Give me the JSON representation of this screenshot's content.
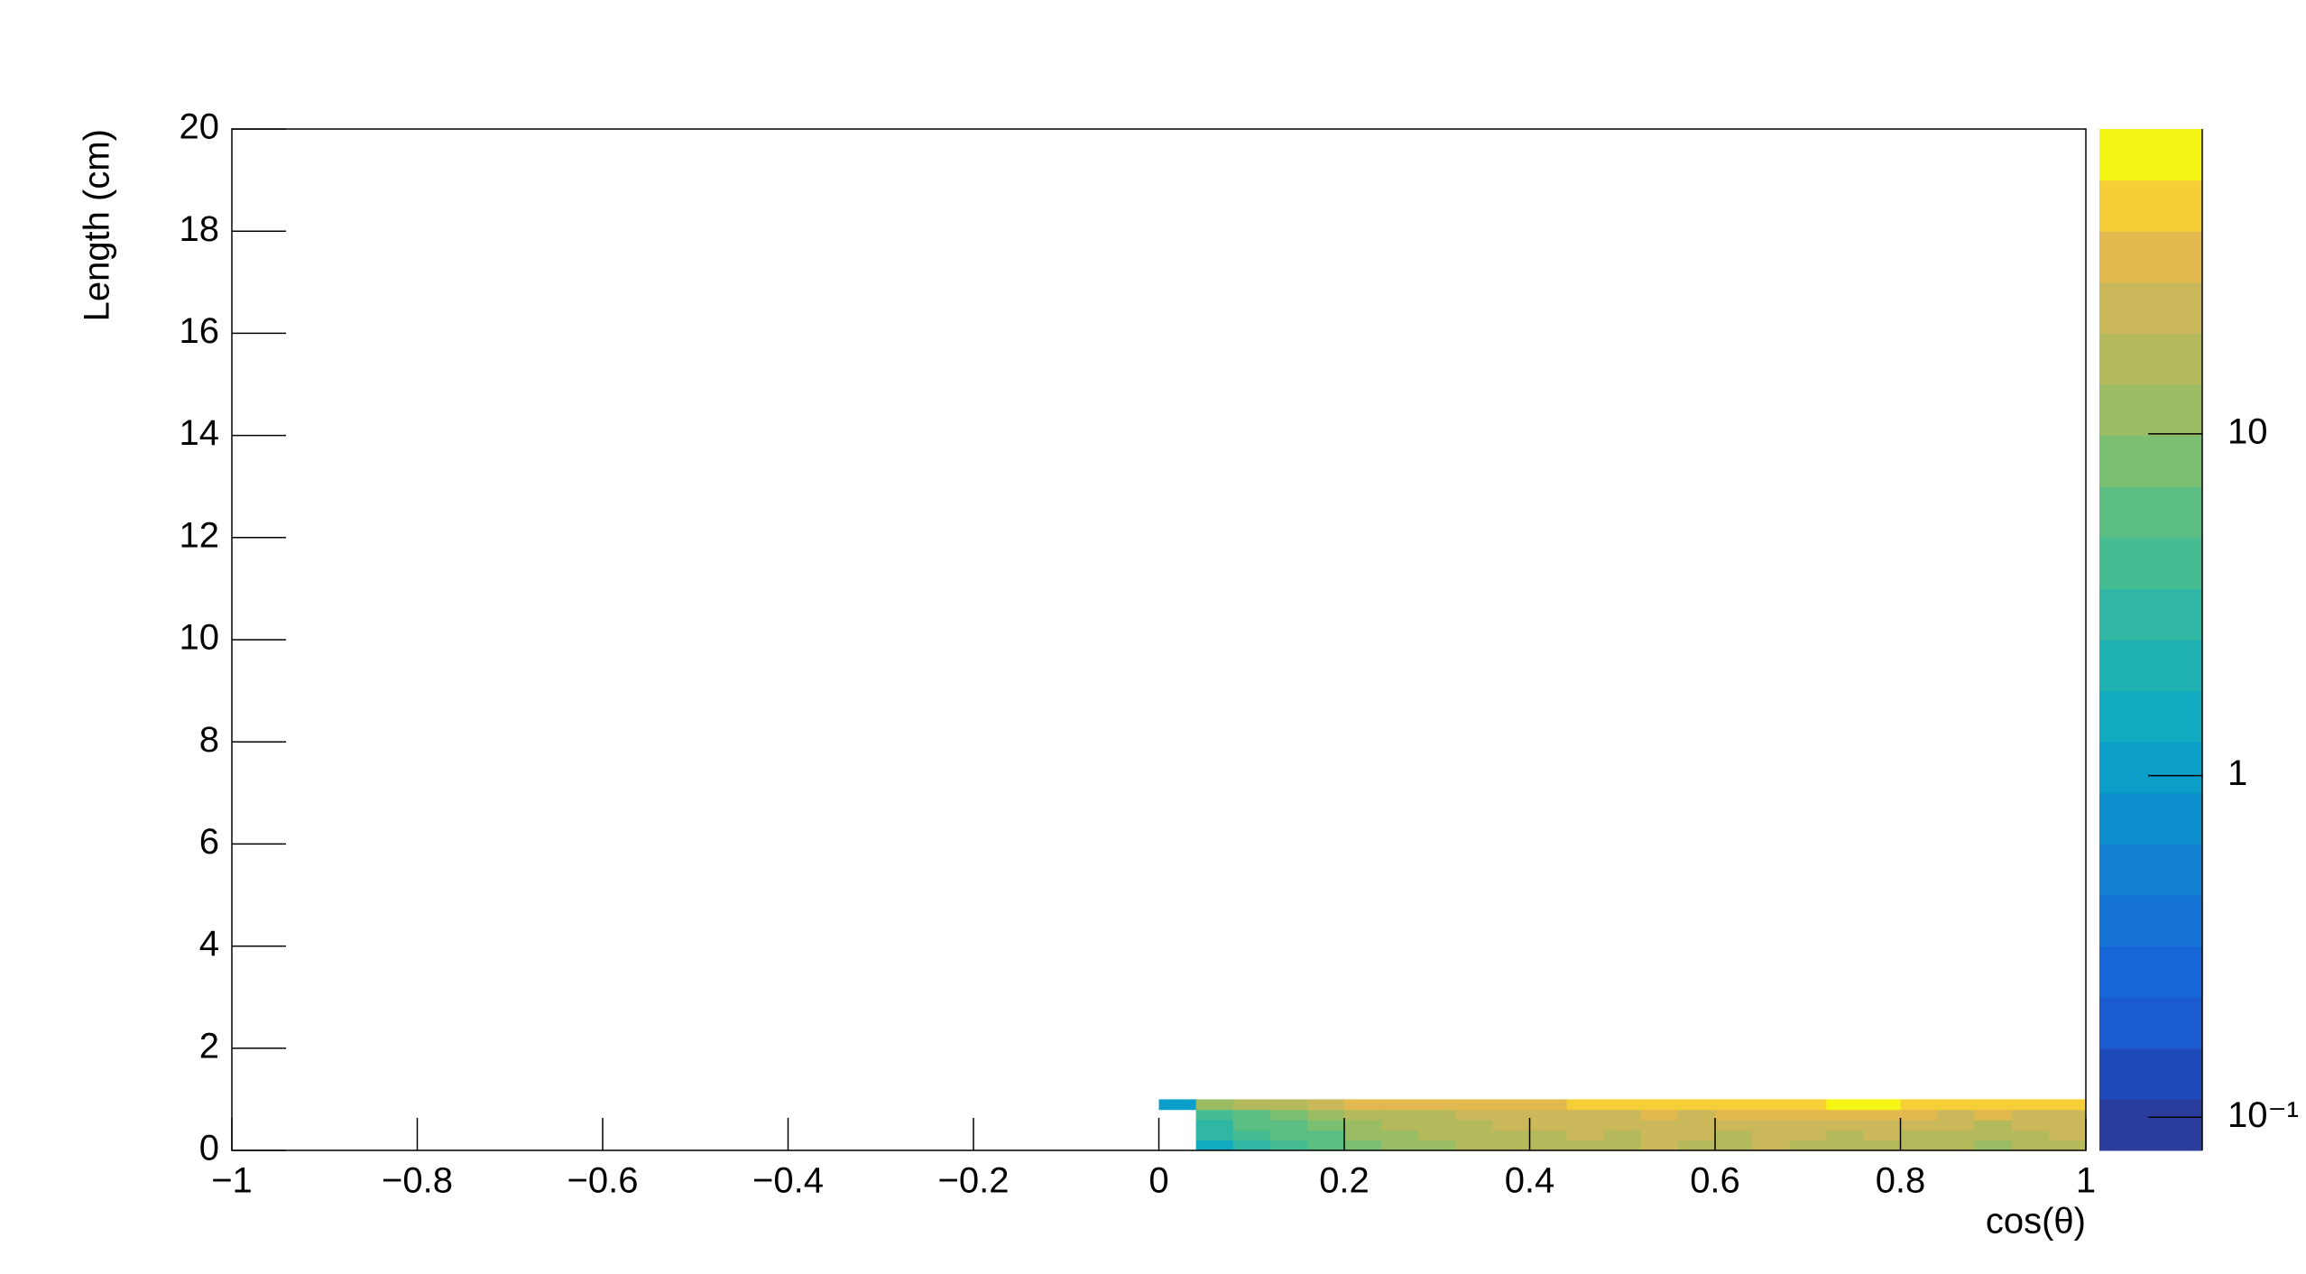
{
  "chart_data": {
    "type": "heatmap",
    "x_label": "cos(θ)",
    "y_label": "Length (cm)",
    "xlim": [
      -1,
      1
    ],
    "xticks": [
      {
        "value": -1,
        "label": "−1"
      },
      {
        "value": -0.8,
        "label": "−0.8"
      },
      {
        "value": -0.6,
        "label": "−0.6"
      },
      {
        "value": -0.4,
        "label": "−0.4"
      },
      {
        "value": -0.2,
        "label": "−0.2"
      },
      0,
      0.2,
      0.4,
      0.6,
      0.8,
      1
    ],
    "ylim": [
      0,
      20
    ],
    "yticks": [
      0,
      2,
      4,
      6,
      8,
      10,
      12,
      14,
      16,
      18,
      20
    ],
    "x_edges": [
      0,
      0.04,
      0.08,
      0.12,
      0.16,
      0.2,
      0.24,
      0.28,
      0.32,
      0.36,
      0.4,
      0.44,
      0.48,
      0.52,
      0.56,
      0.6,
      0.64,
      0.68,
      0.72,
      0.76,
      0.8,
      0.84,
      0.88,
      0.92,
      0.96,
      1
    ],
    "y_edges": [
      0,
      0.2,
      0.4,
      0.6,
      0.8,
      1.0
    ],
    "z": [
      [
        null,
        1.5,
        3,
        4,
        6,
        9,
        11,
        12,
        14,
        15,
        14,
        18,
        16,
        20,
        18,
        16,
        20,
        18,
        16,
        18,
        15,
        16,
        12,
        14,
        18
      ],
      [
        null,
        2.5,
        4,
        5,
        7,
        10,
        12,
        14,
        15,
        18,
        16,
        20,
        18,
        22,
        20,
        18,
        22,
        20,
        18,
        20,
        16,
        18,
        14,
        16,
        20
      ],
      [
        null,
        3,
        5,
        6,
        9,
        12,
        14,
        16,
        18,
        20,
        22,
        20,
        24,
        22,
        25,
        22,
        26,
        24,
        22,
        25,
        20,
        22,
        18,
        20,
        22
      ],
      [
        null,
        4,
        6,
        8,
        10,
        14,
        16,
        18,
        20,
        22,
        25,
        24,
        26,
        28,
        25,
        30,
        28,
        30,
        32,
        28,
        30,
        26,
        28,
        24,
        25
      ],
      [
        1,
        12,
        15,
        18,
        22,
        28,
        30,
        32,
        35,
        35,
        38,
        40,
        45,
        48,
        50,
        55,
        50,
        55,
        60,
        60,
        55,
        50,
        55,
        45,
        40
      ]
    ],
    "zlim": [
      0.08,
      78
    ],
    "zlog": true,
    "zticks": [
      {
        "value": 0.1,
        "label": "10⁻¹"
      },
      1,
      10
    ],
    "palette": [
      "#2a3c9c",
      "#1e4ab9",
      "#1b5bd0",
      "#1766d8",
      "#1573d6",
      "#1380d1",
      "#0e8fcf",
      "#0b9ec9",
      "#11aac0",
      "#20b1b2",
      "#2fb7a3",
      "#45bc92",
      "#5cbe82",
      "#7bbf72",
      "#9abd63",
      "#b4ba5c",
      "#cbb85b",
      "#e1b94e",
      "#f6ce37",
      "#f6f615"
    ]
  }
}
